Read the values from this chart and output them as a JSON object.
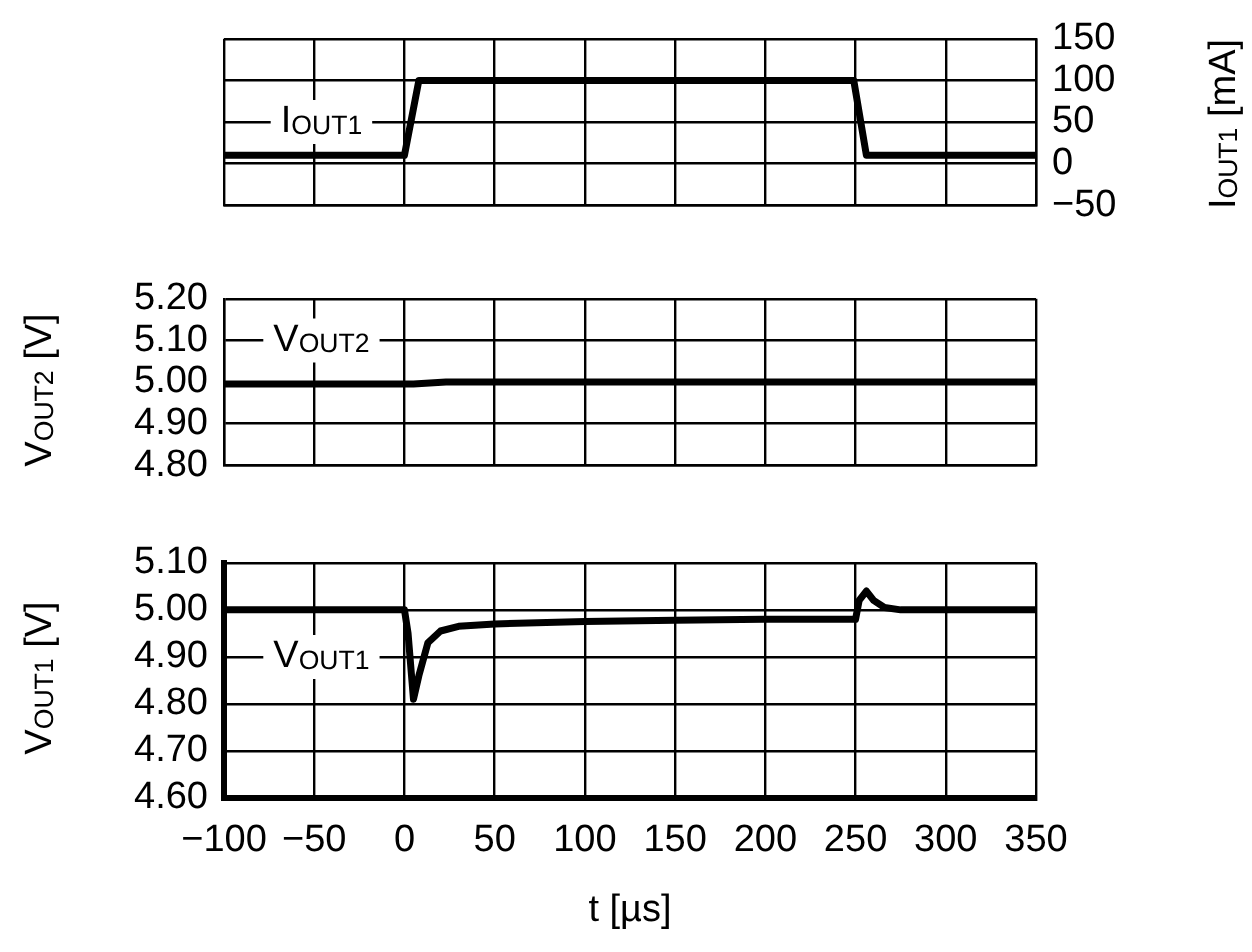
{
  "chart_data": [
    {
      "type": "line",
      "xlim": [
        -100,
        350
      ],
      "xticks": [
        {
          "value": -100,
          "label": null
        },
        {
          "value": -50,
          "label": null
        },
        {
          "value": 0,
          "label": null
        },
        {
          "value": 50,
          "label": null
        },
        {
          "value": 100,
          "label": null
        },
        {
          "value": 150,
          "label": null
        },
        {
          "value": 200,
          "label": null
        },
        {
          "value": 250,
          "label": null
        },
        {
          "value": 300,
          "label": null
        },
        {
          "value": 350,
          "label": null
        }
      ],
      "y2lim": [
        -50,
        150
      ],
      "y2ticks": [
        {
          "value": -50,
          "label": "−50"
        },
        0,
        50,
        100,
        150
      ],
      "y2label": "I$_{OUT1}$ [mA]",
      "grid": true,
      "tick_labels": "y",
      "series": [
        {
          "name": "I$_{OUT1}$",
          "color": "#000000",
          "axis": "y2",
          "x": [
            -100,
            0,
            8,
            249,
            256,
            350
          ],
          "values": [
            10,
            10,
            100,
            100,
            10,
            10
          ]
        }
      ]
    },
    {
      "type": "line",
      "xlim": [
        -100,
        350
      ],
      "xticks": [
        {
          "value": -100,
          "label": null
        },
        {
          "value": -50,
          "label": null
        },
        {
          "value": 0,
          "label": null
        },
        {
          "value": 50,
          "label": null
        },
        {
          "value": 100,
          "label": null
        },
        {
          "value": 150,
          "label": null
        },
        {
          "value": 200,
          "label": null
        },
        {
          "value": 250,
          "label": null
        },
        {
          "value": 300,
          "label": null
        },
        {
          "value": 350,
          "label": null
        }
      ],
      "ylim": [
        4.8,
        5.2
      ],
      "yticks": [
        {
          "value": 4.8,
          "label": "4.80"
        },
        {
          "value": 4.9,
          "label": "4.90"
        },
        {
          "value": 5.0,
          "label": "5.00"
        },
        {
          "value": 5.1,
          "label": "5.10"
        },
        {
          "value": 5.2,
          "label": "5.20"
        }
      ],
      "ylabel": "V$_{OUT2}$ [V]",
      "grid": true,
      "tick_labels": "y",
      "series": [
        {
          "name": "V$_{OUT2}$",
          "color": "#000000",
          "x": [
            -100,
            5,
            23,
            350
          ],
          "values": [
            4.995,
            4.995,
            5.0,
            5.0
          ]
        }
      ]
    },
    {
      "type": "line",
      "xlim": [
        -100,
        350
      ],
      "xticks": [
        {
          "value": -100,
          "label": "−100"
        },
        {
          "value": -50,
          "label": "−50"
        },
        0,
        50,
        100,
        150,
        200,
        250,
        300,
        350
      ],
      "ylim": [
        4.6,
        5.1
      ],
      "yticks": [
        {
          "value": 4.6,
          "label": "4.60"
        },
        {
          "value": 4.7,
          "label": "4.70"
        },
        {
          "value": 4.8,
          "label": "4.80"
        },
        {
          "value": 4.9,
          "label": "4.90"
        },
        {
          "value": 5.0,
          "label": "5.00"
        },
        {
          "value": 5.1,
          "label": "5.10"
        }
      ],
      "ylabel": "V$_{OUT1}$ [V]",
      "xlabel": "t [µs]",
      "grid": true,
      "series": [
        {
          "name": "V$_{OUT1}$",
          "color": "#000000",
          "x": [
            -100,
            0,
            2,
            5,
            8,
            13,
            20,
            30,
            50,
            100,
            150,
            200,
            250,
            252,
            256,
            260,
            266,
            275,
            350
          ],
          "values": [
            5.0,
            5.0,
            4.95,
            4.81,
            4.86,
            4.93,
            4.955,
            4.965,
            4.97,
            4.975,
            4.978,
            4.98,
            4.98,
            5.02,
            5.04,
            5.02,
            5.005,
            5.0,
            5.0
          ]
        }
      ]
    }
  ]
}
